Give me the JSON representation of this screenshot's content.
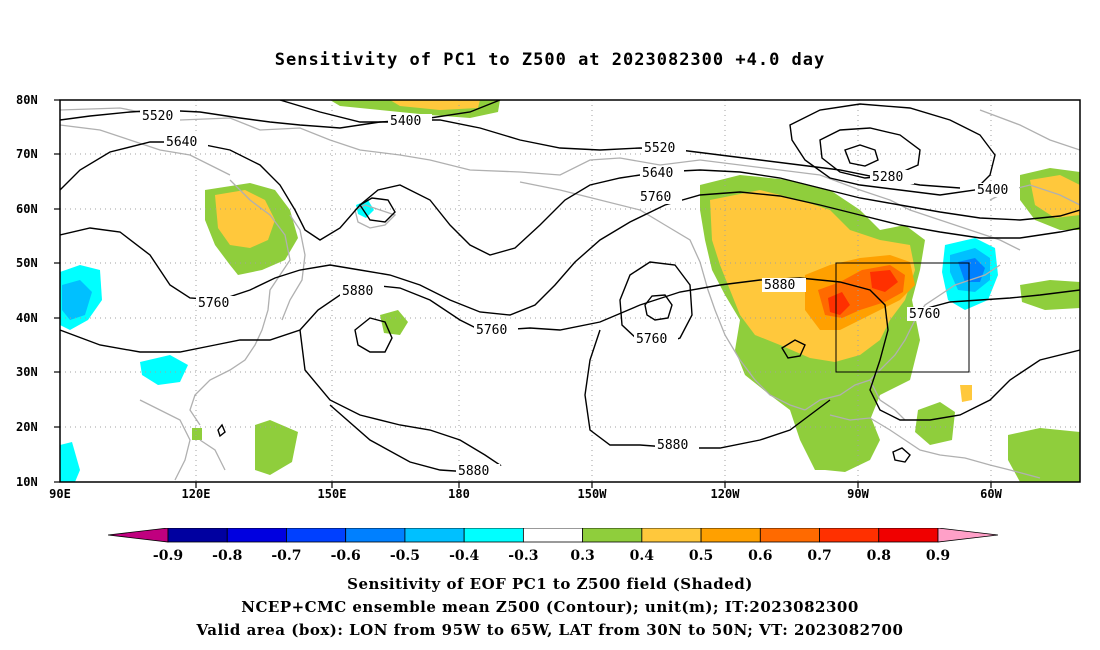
{
  "title": "Sensitivity of PC1 to Z500 at 2023082300 +4.0 day",
  "map": {
    "lat_labels": [
      "80N",
      "70N",
      "60N",
      "50N",
      "40N",
      "30N",
      "20N",
      "10N"
    ],
    "lon_labels": [
      "90E",
      "120E",
      "150E",
      "180",
      "150W",
      "120W",
      "90W",
      "60W"
    ],
    "contour_labels": [
      "5520",
      "5640",
      "5400",
      "5520",
      "5640",
      "5760",
      "5280",
      "5400",
      "5880",
      "5760",
      "5760",
      "5760",
      "5880",
      "5760",
      "5880",
      "5880"
    ],
    "valid_box": {
      "lon_range": [
        "95W",
        "65W"
      ],
      "lat_range": [
        "30N",
        "50N"
      ]
    },
    "contour_color": "#000000",
    "coast_color": "#b0b0b0"
  },
  "colorbar": {
    "ticks": [
      "-0.9",
      "-0.8",
      "-0.7",
      "-0.6",
      "-0.5",
      "-0.4",
      "-0.3",
      "0.3",
      "0.4",
      "0.5",
      "0.6",
      "0.7",
      "0.8",
      "0.9"
    ],
    "colors": [
      "#c0007f",
      "#0000a0",
      "#0000e0",
      "#0040ff",
      "#0080ff",
      "#00c0ff",
      "#00ffff",
      "#ffffff",
      "#8fce3c",
      "#ffc83c",
      "#ffa000",
      "#ff6a00",
      "#ff3000",
      "#f00000",
      "#ffa0c8"
    ]
  },
  "captions": {
    "line1": "Sensitivity of EOF PC1 to Z500 field (Shaded)",
    "line2": "NCEP+CMC ensemble mean Z500 (Contour); unit(m); IT:2023082300",
    "line3": "Valid area (box): LON from 95W to 65W, LAT from 30N to 50N; VT: 2023082700"
  }
}
